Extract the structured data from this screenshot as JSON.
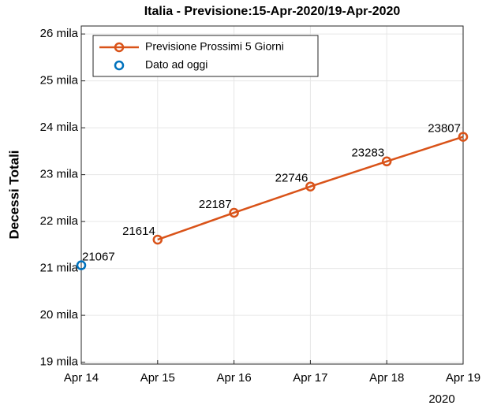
{
  "chart_data": {
    "type": "line",
    "title": "Italia - Previsione:15-Apr-2020/19-Apr-2020",
    "ylabel": "Decessi Totali",
    "categories": [
      "Apr 14",
      "Apr 15",
      "Apr 16",
      "Apr 17",
      "Apr 18",
      "Apr 19"
    ],
    "year_label": "2020",
    "series": [
      {
        "name": "Previsione Prossimi 5 Giorni",
        "color": "#d95319",
        "values": [
          null,
          21614,
          22187,
          22746,
          23283,
          23807
        ]
      },
      {
        "name": "Dato ad oggi",
        "color": "#0072bd",
        "values": [
          21067,
          null,
          null,
          null,
          null,
          null
        ]
      }
    ],
    "ylim": [
      18960,
      26170
    ],
    "yticks": [
      {
        "value": 19000,
        "label": "19 mila"
      },
      {
        "value": 20000,
        "label": "20 mila"
      },
      {
        "value": 21000,
        "label": "21 mila"
      },
      {
        "value": 22000,
        "label": "22 mila"
      },
      {
        "value": 23000,
        "label": "23 mila"
      },
      {
        "value": 24000,
        "label": "24 mila"
      },
      {
        "value": 25000,
        "label": "25 mila"
      },
      {
        "value": 26000,
        "label": "26 mila"
      }
    ],
    "grid": true,
    "legend": "upper left"
  }
}
